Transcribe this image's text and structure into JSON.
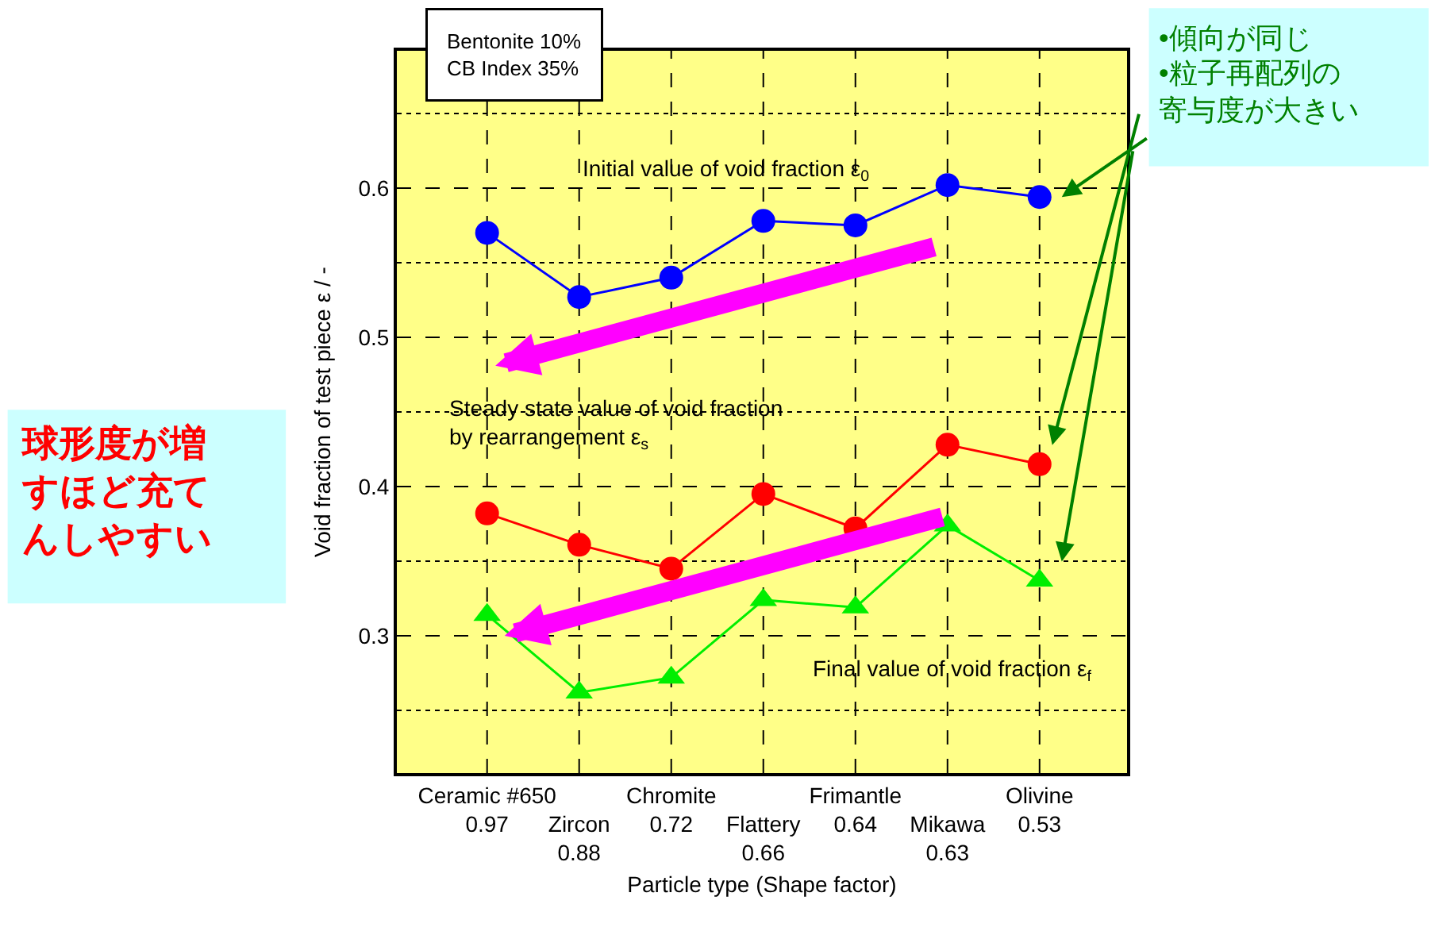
{
  "chart_data": {
    "type": "line",
    "xlabel": "Particle type (Shape factor)",
    "ylabel": "Void fraction of test piece ε / -",
    "categories": [
      "Ceramic #650\n0.97",
      "Zircon\n0.88",
      "Chromite\n0.72",
      "Flattery\n0.66",
      "Frimantle\n0.64",
      "Mikawa\n0.63",
      "Olivine\n0.53"
    ],
    "series": [
      {
        "color": "#0000ff",
        "marker": "circle",
        "values": [
          0.57,
          0.527,
          0.54,
          0.578,
          0.575,
          0.602,
          0.594
        ]
      },
      {
        "color": "#ff0000",
        "marker": "circle",
        "values": [
          0.382,
          0.361,
          0.345,
          0.395,
          0.372,
          0.428,
          0.415
        ]
      },
      {
        "color": "#00ee00",
        "marker": "triangle",
        "values": [
          0.314,
          0.262,
          0.272,
          0.324,
          0.319,
          0.374,
          0.337
        ]
      }
    ],
    "ylim": [
      0.208,
      0.692
    ],
    "yticks": [
      {
        "value": 0.25,
        "label": null
      },
      0.3,
      {
        "value": 0.35,
        "label": null
      },
      0.4,
      {
        "value": 0.45,
        "label": null
      },
      0.5,
      {
        "value": 0.55,
        "label": null
      },
      0.6,
      {
        "value": 0.65,
        "label": null
      }
    ],
    "grid": true,
    "annotations": [
      "Bentonite 10%\nCB Index 35%",
      "Initial value of void fraction ε$_{0}$",
      "Steady state value of void fraction\nby rearrangement ε$_{s}$",
      "Final value of void fraction ε$_{f}$",
      "•傾向が同じ",
      "•粒子再配列の寄与度が大きい",
      "球形度が増すほど充てんしやすい"
    ]
  }
}
